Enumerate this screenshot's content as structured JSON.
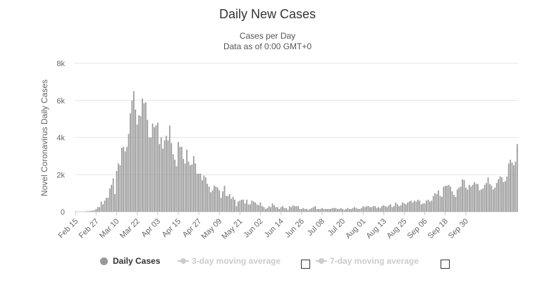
{
  "title": "Daily New Cases",
  "subtitle_line1": "Cases per Day",
  "subtitle_line2": "Data as of 0:00 GMT+0",
  "legend": {
    "item1": "Daily Cases",
    "item2": "3-day moving average",
    "item3": "7-day moving average"
  },
  "colors": {
    "bar": "#999999",
    "grid": "#e6e6e6",
    "axis_text": "#666666"
  },
  "chart_data": {
    "type": "bar",
    "title": "Daily New Cases",
    "subtitle": "Cases per Day\nData as of 0:00 GMT+0",
    "xlabel": "",
    "ylabel": "Novel Coronavirus Daily Cases",
    "ylim": [
      0,
      8000
    ],
    "yticks": [
      0,
      2000,
      4000,
      6000,
      8000
    ],
    "ytick_labels": [
      "0",
      "2k",
      "4k",
      "6k",
      "8k"
    ],
    "xtick_labels": [
      "Feb 15",
      "Feb 27",
      "Mar 10",
      "Mar 22",
      "Apr 03",
      "Apr 15",
      "Apr 27",
      "May 09",
      "May 21",
      "Jun 02",
      "Jun 14",
      "Jun 26",
      "Jul 08",
      "Jul 20",
      "Aug 01",
      "Aug 13",
      "Aug 25",
      "Sep 06",
      "Sep 18",
      "Sep 30"
    ],
    "grid": true,
    "legend_position": "bottom",
    "start_date": "Feb 15",
    "series": [
      {
        "name": "Daily Cases",
        "values": [
          0,
          0,
          0,
          0,
          0,
          10,
          20,
          30,
          40,
          50,
          60,
          80,
          150,
          250,
          250,
          550,
          400,
          600,
          750,
          750,
          1250,
          1450,
          1800,
          950,
          2200,
          2600,
          2500,
          3450,
          3500,
          3250,
          3500,
          4200,
          5300,
          6000,
          6500,
          5500,
          4700,
          5200,
          5150,
          6100,
          5850,
          5900,
          4950,
          4000,
          4000,
          4750,
          4550,
          4650,
          4800,
          3650,
          4000,
          3400,
          3850,
          4100,
          3850,
          4650,
          3700,
          3100,
          2800,
          2450,
          3750,
          3500,
          3500,
          2850,
          2600,
          3350,
          2700,
          2500,
          2550,
          3000,
          2600,
          2050,
          2050,
          2050,
          1700,
          1950,
          1850,
          1500,
          1350,
          1050,
          1150,
          1400,
          1350,
          1300,
          1150,
          750,
          1100,
          1400,
          850,
          850,
          950,
          700,
          800,
          650,
          300,
          550,
          600,
          650,
          650,
          450,
          650,
          400,
          400,
          600,
          550,
          500,
          400,
          350,
          500,
          300,
          250,
          150,
          200,
          300,
          250,
          450,
          350,
          250,
          250,
          150,
          250,
          300,
          200,
          200,
          100,
          300,
          250,
          350,
          300,
          300,
          300,
          150,
          150,
          200,
          150,
          150,
          100,
          150,
          200,
          250,
          300,
          150,
          150,
          150,
          200,
          150,
          150,
          150,
          150,
          150,
          200,
          200,
          200,
          150,
          150,
          200,
          150,
          100,
          150,
          200,
          150,
          150,
          200,
          250,
          200,
          150,
          150,
          200,
          300,
          250,
          300,
          300,
          250,
          250,
          300,
          300,
          200,
          250,
          200,
          300,
          350,
          300,
          250,
          350,
          400,
          250,
          300,
          500,
          400,
          300,
          350,
          500,
          450,
          400,
          500,
          550,
          600,
          500,
          600,
          550,
          650,
          600,
          400,
          450,
          450,
          600,
          650,
          550,
          600,
          850,
          1000,
          950,
          1150,
          850,
          800,
          1350,
          1400,
          1400,
          1450,
          1350,
          1100,
          900,
          800,
          1200,
          1300,
          1350,
          1750,
          1700,
          1300,
          1200,
          1450,
          1350,
          1450,
          1600,
          1500,
          1500,
          1150,
          1200,
          1250,
          1450,
          1550,
          1850,
          1500,
          1400,
          1200,
          1300,
          1550,
          1750,
          1900,
          1850,
          1600,
          1650,
          1900,
          2600,
          2800,
          2650,
          2500,
          2700,
          3650
        ]
      }
    ]
  }
}
